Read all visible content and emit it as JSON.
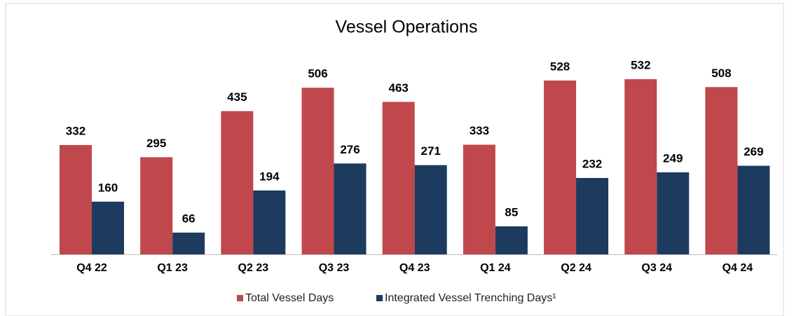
{
  "chart_data": {
    "type": "bar",
    "title": "Vessel Operations",
    "categories": [
      "Q4 22",
      "Q1 23",
      "Q2 23",
      "Q3 23",
      "Q4 23",
      "Q1 24",
      "Q2 24",
      "Q3 24",
      "Q4 24"
    ],
    "series": [
      {
        "name": "Total Vessel Days",
        "color": "#c0474b",
        "values": [
          332,
          295,
          435,
          506,
          463,
          333,
          528,
          532,
          508
        ]
      },
      {
        "name": "Integrated Vessel Trenching Days¹",
        "color": "#1d3a5f",
        "values": [
          160,
          66,
          194,
          276,
          271,
          85,
          232,
          249,
          269
        ]
      }
    ]
  }
}
